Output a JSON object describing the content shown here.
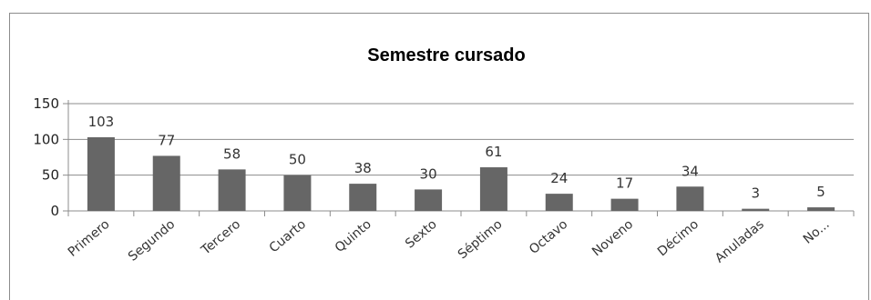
{
  "chart_data": {
    "type": "bar",
    "title": "Semestre cursado",
    "xlabel": "",
    "ylabel": "",
    "categories": [
      "Primero",
      "Segundo",
      "Tercero",
      "Cuarto",
      "Quinto",
      "Sexto",
      "Séptimo",
      "Octavo",
      "Noveno",
      "Décimo",
      "Anuladas",
      "No..."
    ],
    "values": [
      103,
      77,
      58,
      50,
      38,
      30,
      61,
      24,
      17,
      34,
      3,
      5
    ],
    "ylim": [
      0,
      150
    ],
    "yticks": [
      "0",
      "50",
      "100",
      "150"
    ],
    "grid": true,
    "legend": "none",
    "bar_color": "#666666",
    "grid_color": "#8c8c8c"
  }
}
